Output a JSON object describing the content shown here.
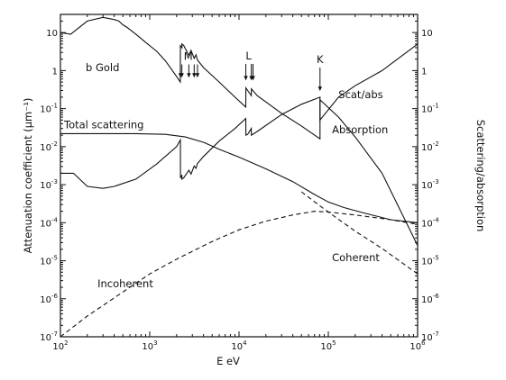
{
  "chart_data": {
    "type": "line",
    "panel_label": "b Gold",
    "xlabel": "E eV",
    "ylabel_left": "Attenuation coefficient (μm⁻¹)",
    "ylabel_right": "Scattering/absorption",
    "x_scale": "log",
    "y_scale": "log",
    "xlim": [
      100,
      1000000
    ],
    "ylim": [
      1e-07,
      30
    ],
    "x_ticks": [
      {
        "base": "10",
        "exp": "2",
        "value": 100
      },
      {
        "base": "10",
        "exp": "3",
        "value": 1000
      },
      {
        "base": "10",
        "exp": "4",
        "value": 10000
      },
      {
        "base": "10",
        "exp": "5",
        "value": 100000
      },
      {
        "base": "10",
        "exp": "6",
        "value": 1000000
      }
    ],
    "y_ticks": [
      {
        "base": "10",
        "exp": "",
        "value": 10
      },
      {
        "base": "1",
        "exp": "",
        "value": 1
      },
      {
        "base": "10",
        "exp": "-1",
        "value": 0.1
      },
      {
        "base": "10",
        "exp": "-2",
        "value": 0.01
      },
      {
        "base": "10",
        "exp": "-3",
        "value": 0.001
      },
      {
        "base": "10",
        "exp": "-4",
        "value": 0.0001
      },
      {
        "base": "10",
        "exp": "-5",
        "value": 1e-05
      },
      {
        "base": "10",
        "exp": "-6",
        "value": 1e-06
      },
      {
        "base": "10",
        "exp": "-7",
        "value": 1e-07
      }
    ],
    "series": [
      {
        "name": "Absorption",
        "style": "solid",
        "x": [
          100,
          130,
          200,
          300,
          400,
          450,
          500,
          550,
          600,
          700,
          900,
          1200,
          1500,
          2000,
          2200,
          2206,
          2300,
          2291,
          2400,
          2743,
          2900,
          3148,
          3300,
          3425,
          4000,
          6000,
          9000,
          11000,
          11900,
          11920,
          12500,
          13730,
          13740,
          16000,
          30000,
          50000,
          80700,
          80730,
          130000,
          200000,
          400000,
          1000000
        ],
        "y": [
          10,
          9,
          20,
          25,
          22,
          20,
          16,
          14,
          12,
          9,
          5.5,
          3.2,
          1.8,
          0.7,
          0.5,
          4.5,
          4,
          5,
          4.6,
          2.5,
          3.4,
          2.1,
          2.6,
          1.9,
          1.2,
          0.5,
          0.2,
          0.13,
          0.11,
          0.35,
          0.3,
          0.22,
          0.33,
          0.22,
          0.075,
          0.035,
          0.016,
          0.17,
          0.06,
          0.018,
          0.002,
          2.5e-05
        ]
      },
      {
        "name": "Scat/abs",
        "style": "solid",
        "x": [
          100,
          140,
          200,
          300,
          400,
          700,
          1200,
          2000,
          2206,
          2210,
          2300,
          2291,
          2400,
          2743,
          2900,
          3148,
          3300,
          3425,
          4000,
          6000,
          9000,
          11919,
          11930,
          12500,
          13733,
          13740,
          16000,
          30000,
          50000,
          80725,
          80730,
          130000,
          200000,
          400000,
          1000000
        ],
        "y": [
          0.002,
          0.002,
          0.0009,
          0.0008,
          0.0009,
          0.0014,
          0.0035,
          0.01,
          0.015,
          0.0015,
          0.0018,
          0.0014,
          0.0015,
          0.0024,
          0.0019,
          0.0031,
          0.0027,
          0.0036,
          0.0055,
          0.014,
          0.03,
          0.055,
          0.02,
          0.021,
          0.03,
          0.02,
          0.025,
          0.07,
          0.13,
          0.2,
          0.05,
          0.2,
          0.4,
          1,
          5
        ]
      },
      {
        "name": "Total scattering",
        "style": "solid",
        "x": [
          100,
          300,
          700,
          1500,
          2500,
          4000,
          6000,
          10000,
          20000,
          40000,
          70000,
          100000,
          150000,
          250000,
          500000,
          1000000
        ],
        "y": [
          0.022,
          0.022,
          0.022,
          0.021,
          0.018,
          0.013,
          0.0085,
          0.0053,
          0.0026,
          0.0012,
          0.00055,
          0.00035,
          0.00025,
          0.00018,
          0.00012,
          0.0001
        ]
      },
      {
        "name": "Coherent",
        "style": "dashed",
        "x": [
          50000,
          80000,
          120000,
          200000,
          400000,
          1000000
        ],
        "y": [
          0.00065,
          0.00028,
          0.00014,
          6e-05,
          2.1e-05,
          4.5e-06
        ]
      },
      {
        "name": "Incoherent",
        "style": "dashed",
        "x": [
          100,
          200,
          500,
          1000,
          2000,
          5000,
          10000,
          20000,
          40000,
          70000,
          100000,
          200000,
          500000,
          1000000
        ],
        "y": [
          1e-07,
          3.5e-07,
          1.5e-06,
          4.5e-06,
          1.1e-05,
          3.2e-05,
          6.5e-05,
          0.00011,
          0.00016,
          0.0002,
          0.00019,
          0.00016,
          0.00012,
          9e-05
        ]
      }
    ],
    "annotations": [
      {
        "text": "Total scattering",
        "x": 100,
        "y": 0.022
      },
      {
        "text": "Absorption",
        "x": 110000,
        "y": 0.016
      },
      {
        "text": "Scat/abs",
        "x": 130000,
        "y": 0.15
      },
      {
        "text": "Coherent",
        "x": 110000,
        "y": 1.2e-05
      },
      {
        "text": "Incoherent",
        "x": 260,
        "y": 2.5e-06
      }
    ],
    "edges": [
      {
        "label": "M",
        "arrow_x": [
          2206,
          2291,
          2743,
          3148,
          3425
        ],
        "label_x": 2700,
        "tip_y": 0.65,
        "tail_y": 1.45
      },
      {
        "label": "L",
        "arrow_x": [
          11919,
          13733,
          14353
        ],
        "label_x": 12800,
        "tip_y": 0.55,
        "tail_y": 1.5
      },
      {
        "label": "K",
        "arrow_x": [
          80725
        ],
        "label_x": 80725,
        "tip_y": 0.29,
        "tail_y": 1.2
      }
    ]
  }
}
